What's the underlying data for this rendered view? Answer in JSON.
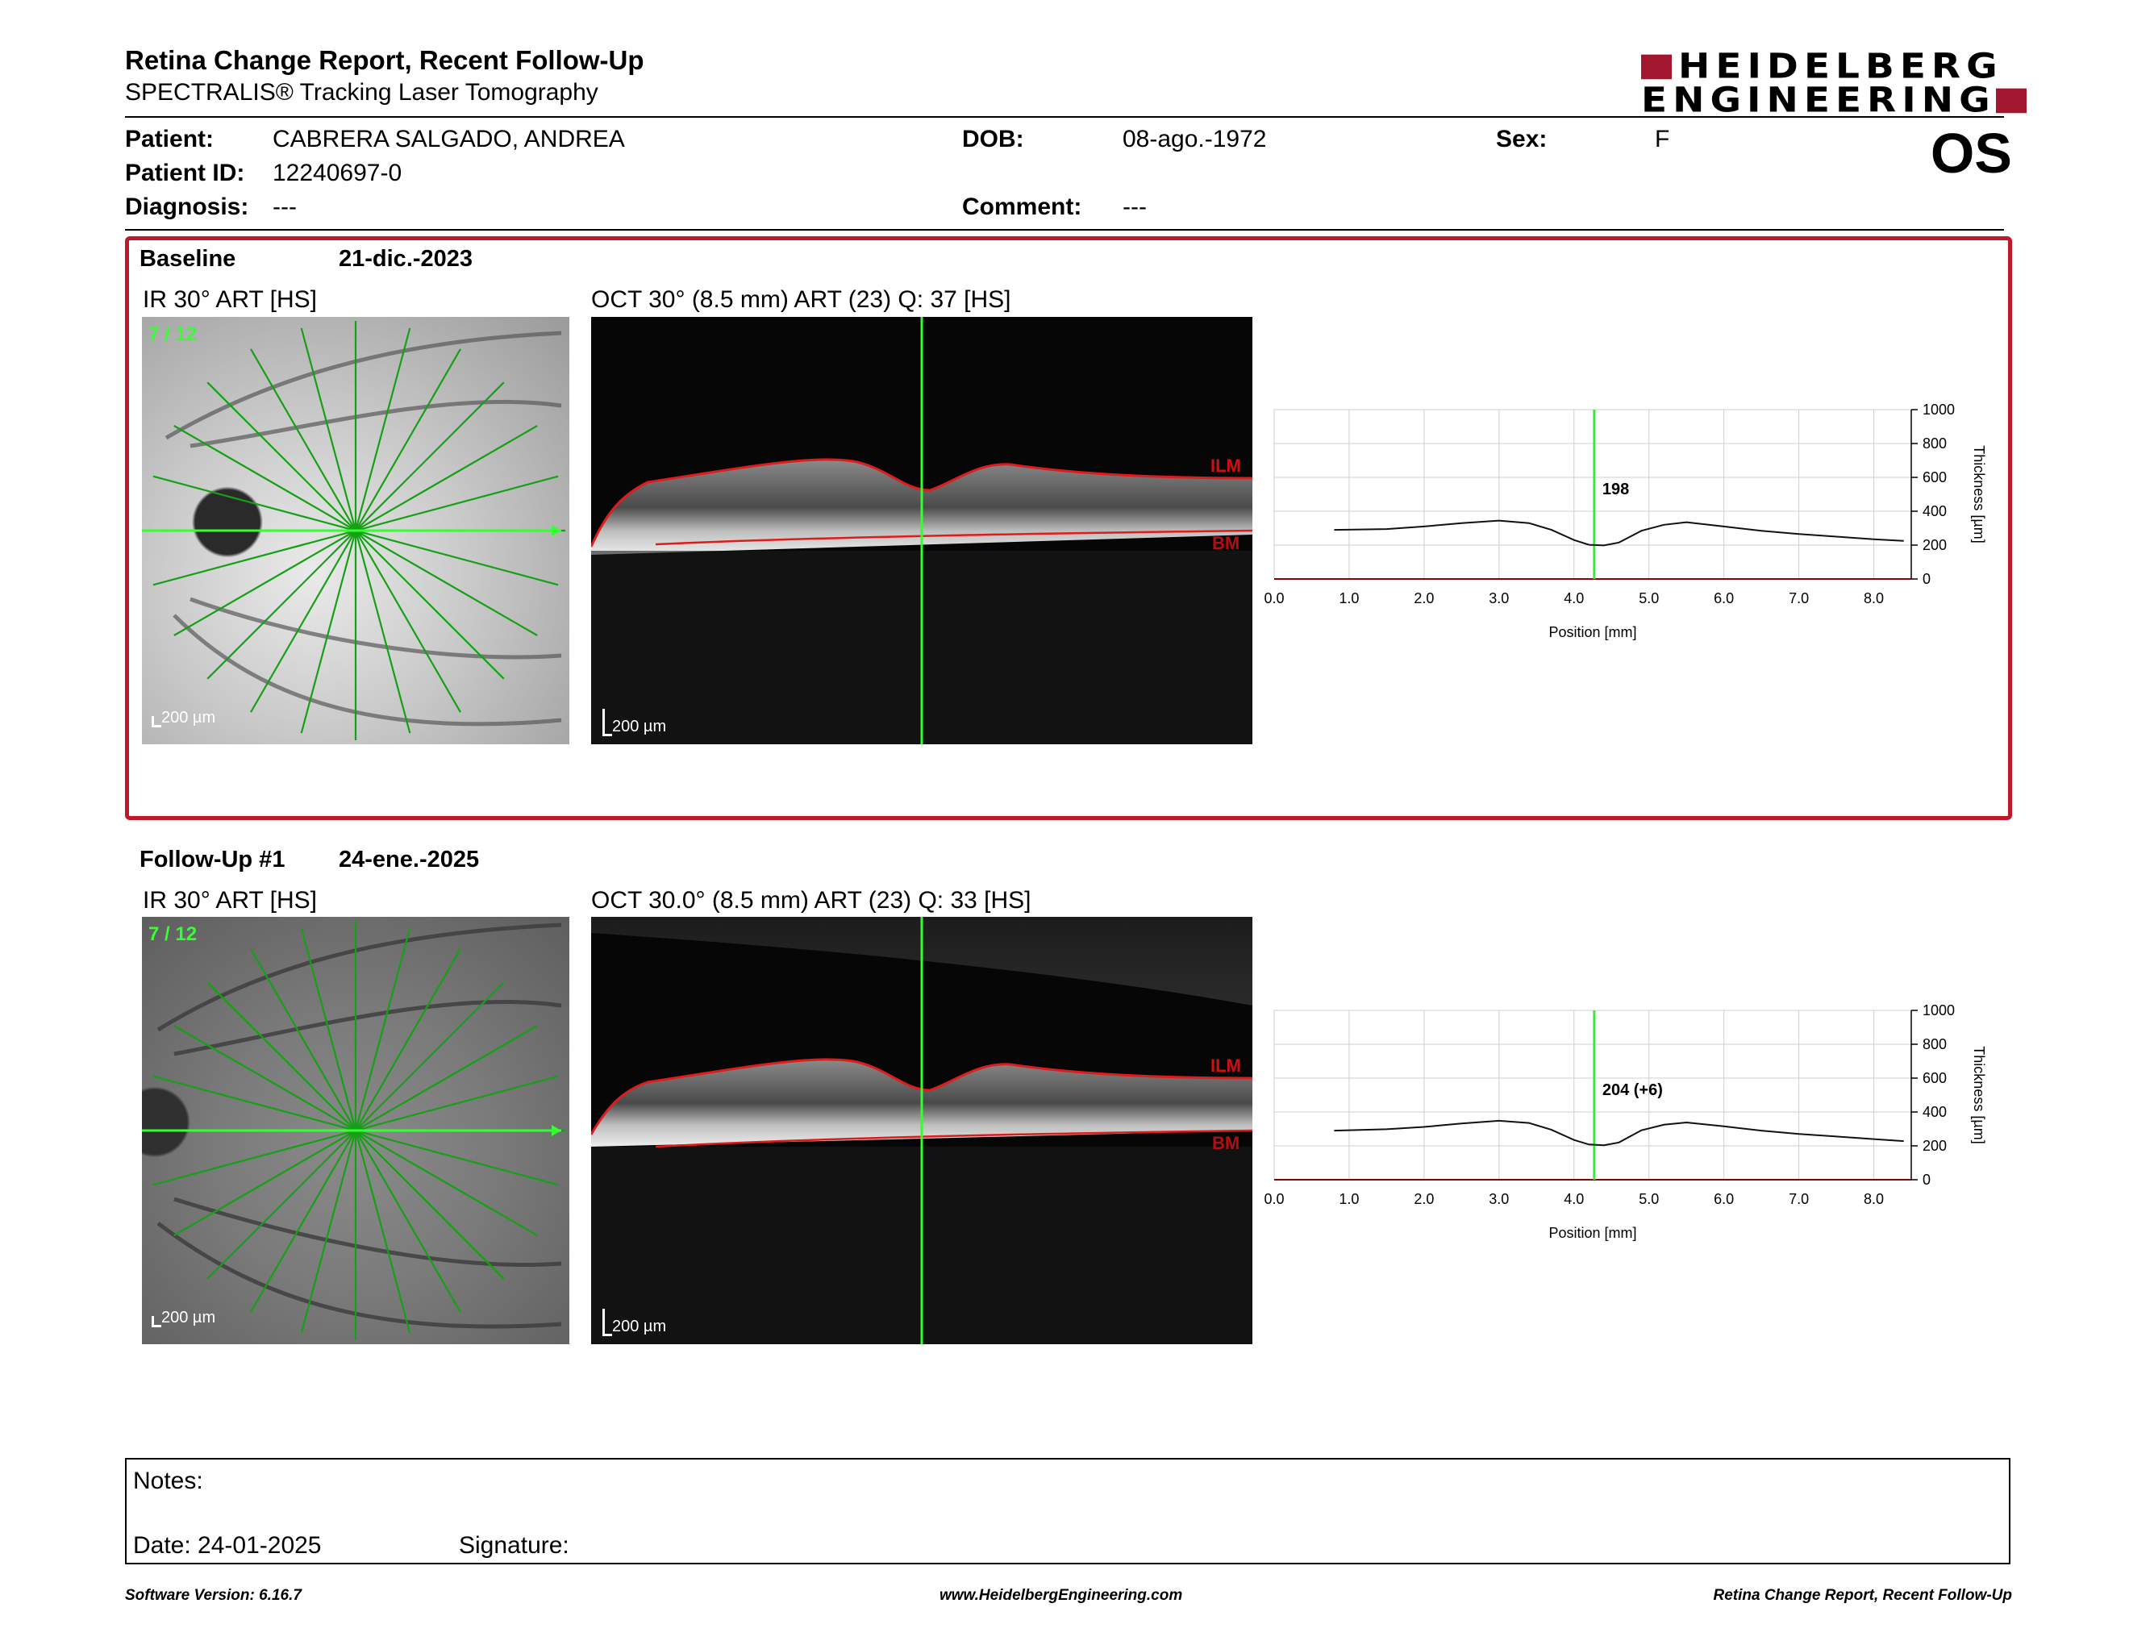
{
  "report": {
    "title": "Retina Change Report, Recent Follow-Up",
    "subtitle": "SPECTRALIS® Tracking Laser Tomography",
    "logo_line1": "HEIDELBERG",
    "logo_line2": "ENGINEERING",
    "brand_color": "#a3162f",
    "eye": "OS"
  },
  "patient": {
    "patient_label": "Patient:",
    "patient_name": "CABRERA SALGADO, ANDREA",
    "id_label": "Patient ID:",
    "id_value": "12240697-0",
    "diagnosis_label": "Diagnosis:",
    "diagnosis_value": "---",
    "dob_label": "DOB:",
    "dob_value": "08-ago.-1972",
    "comment_label": "Comment:",
    "comment_value": "---",
    "sex_label": "Sex:",
    "sex_value": "F"
  },
  "baseline": {
    "label": "Baseline",
    "date": "21-dic.-2023",
    "ir_title": "IR 30° ART [HS]",
    "ir_counter": "7 / 12",
    "ir_scale": "200 µm",
    "oct_title": "OCT 30° (8.5 mm) ART (23) Q: 37 [HS]",
    "oct_scale": "200 µm",
    "ilm_label": "ILM",
    "bm_label": "BM",
    "highlight_color": "#c0172a"
  },
  "followup": {
    "label": "Follow-Up #1",
    "date": "24-ene.-2025",
    "ir_title": "IR 30° ART [HS]",
    "ir_counter": "7 / 12",
    "ir_scale": "200 µm",
    "oct_title": "OCT 30.0° (8.5 mm) ART (23) Q: 33 [HS]",
    "oct_scale": "200 µm",
    "ilm_label": "ILM",
    "bm_label": "BM"
  },
  "chart_data": [
    {
      "type": "line",
      "xlabel": "Position [mm]",
      "ylabel": "Thickness [µm]",
      "xlim": [
        0,
        8.5
      ],
      "ylim": [
        0,
        1000
      ],
      "xticks": [
        "0.0",
        "1.0",
        "2.0",
        "3.0",
        "4.0",
        "5.0",
        "6.0",
        "7.0",
        "8.0"
      ],
      "yticks": [
        "0",
        "200",
        "400",
        "600",
        "800",
        "1000"
      ],
      "cursor_x": 4.27,
      "cursor_label": "198",
      "grid": true,
      "series": [
        {
          "x": [
            0.8,
            1.5,
            2.0,
            2.5,
            3.0,
            3.4,
            3.7,
            4.0,
            4.2,
            4.4,
            4.6,
            4.9,
            5.2,
            5.5,
            6.0,
            6.5,
            7.0,
            7.5,
            8.0,
            8.4
          ],
          "y": [
            290,
            295,
            310,
            330,
            345,
            330,
            290,
            230,
            202,
            198,
            215,
            285,
            320,
            335,
            310,
            285,
            265,
            250,
            235,
            225
          ]
        }
      ]
    },
    {
      "type": "line",
      "xlabel": "Position [mm]",
      "ylabel": "Thickness [µm]",
      "xlim": [
        0,
        8.5
      ],
      "ylim": [
        0,
        1000
      ],
      "xticks": [
        "0.0",
        "1.0",
        "2.0",
        "3.0",
        "4.0",
        "5.0",
        "6.0",
        "7.0",
        "8.0"
      ],
      "yticks": [
        "0",
        "200",
        "400",
        "600",
        "800",
        "1000"
      ],
      "cursor_x": 4.27,
      "cursor_label": "204 (+6)",
      "grid": true,
      "series": [
        {
          "x": [
            0.8,
            1.5,
            2.0,
            2.5,
            3.0,
            3.4,
            3.7,
            4.0,
            4.2,
            4.4,
            4.6,
            4.9,
            5.2,
            5.5,
            6.0,
            6.5,
            7.0,
            7.5,
            8.0,
            8.4
          ],
          "y": [
            290,
            298,
            312,
            332,
            348,
            335,
            295,
            235,
            208,
            204,
            220,
            292,
            325,
            338,
            315,
            290,
            270,
            255,
            240,
            228
          ]
        }
      ]
    }
  ],
  "notes": {
    "notes_label": "Notes:",
    "date_label": "Date: 24-01-2025",
    "signature_label": "Signature:"
  },
  "footer": {
    "software": "Software Version: 6.16.7",
    "website": "www.HeidelbergEngineering.com",
    "report_name": "Retina Change Report, Recent Follow-Up"
  }
}
